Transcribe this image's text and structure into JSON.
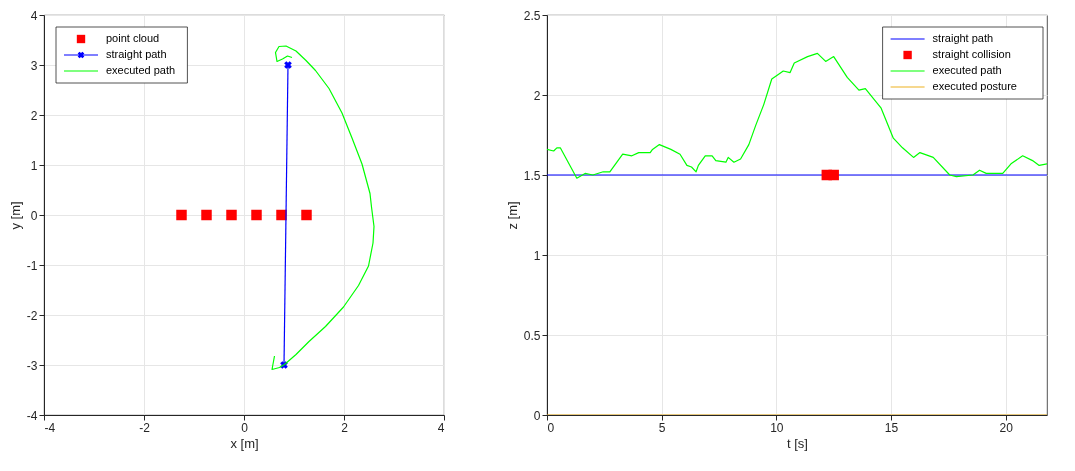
{
  "chart_data": [
    {
      "type": "line",
      "xlabel": "x [m]",
      "ylabel": "y [m]",
      "xlim": [
        -4,
        4
      ],
      "ylim": [
        -4,
        4
      ],
      "xticks": [
        -4,
        -2,
        0,
        2,
        4
      ],
      "yticks": [
        -4,
        -3,
        -2,
        -1,
        0,
        1,
        2,
        3,
        4
      ],
      "grid": true,
      "legend": "top left",
      "series": [
        {
          "name": "point cloud",
          "type": "scatter",
          "marker": "square",
          "color": "#ff0000",
          "x": [
            -1.25,
            -0.75,
            -0.25,
            0.25,
            0.75,
            1.25
          ],
          "values": [
            0,
            0,
            0,
            0,
            0,
            0
          ]
        },
        {
          "name": "straight path",
          "marker": "cross",
          "color": "#0000ff",
          "x": [
            0.88,
            0.8
          ],
          "values": [
            3,
            -3
          ]
        },
        {
          "name": "executed path",
          "marker": "none",
          "color": "#00ff00",
          "x": [
            0.61,
            0.56,
            0.71,
            0.81,
            1.04,
            1.3,
            1.63,
            1.99,
            2.29,
            2.49,
            2.58,
            2.6,
            2.55,
            2.52,
            2.36,
            2.16,
            1.96,
            1.7,
            1.43,
            1.24,
            1.04,
            0.84,
            0.7,
            0.63,
            0.66,
            0.77,
            0.87,
            0.96
          ],
          "values": [
            -2.82,
            -3.09,
            -3.05,
            -2.99,
            -2.79,
            -2.53,
            -2.23,
            -1.84,
            -1.41,
            -1.02,
            -0.56,
            -0.23,
            0.16,
            0.43,
            1.02,
            1.54,
            2.04,
            2.53,
            2.89,
            3.09,
            3.28,
            3.38,
            3.37,
            3.25,
            3.07,
            3.12,
            3.18,
            3.15
          ]
        }
      ]
    },
    {
      "type": "line",
      "xlabel": "t [s]",
      "ylabel": "z [m]",
      "xlim": [
        0,
        21.8
      ],
      "ylim": [
        0,
        2.5
      ],
      "xticks": [
        0,
        5,
        10,
        15,
        20
      ],
      "yticks": [
        0,
        0.5,
        1,
        1.5,
        2,
        2.5
      ],
      "grid": true,
      "legend": "top right",
      "series": [
        {
          "name": "straight path",
          "marker": "none",
          "color": "#0000ff",
          "x": [
            0,
            21.8
          ],
          "values": [
            1.5,
            1.5
          ]
        },
        {
          "name": "straight collision",
          "type": "scatter",
          "marker": "square",
          "color": "#ff0000",
          "x": [
            12.2,
            12.5
          ],
          "values": [
            1.5,
            1.5
          ]
        },
        {
          "name": "executed path",
          "marker": "none",
          "color": "#00ff00",
          "x": [
            0,
            0.29,
            0.43,
            0.58,
            1.3,
            1.66,
            2.0,
            2.45,
            2.74,
            3.3,
            3.7,
            4.0,
            4.5,
            4.6,
            4.9,
            5.4,
            5.8,
            6.1,
            6.3,
            6.5,
            6.6,
            6.9,
            7.2,
            7.36,
            7.8,
            7.9,
            8.15,
            8.44,
            8.8,
            9.1,
            9.45,
            9.8,
            10.1,
            10.3,
            10.6,
            10.78,
            11.36,
            11.79,
            12.15,
            12.5,
            13.09,
            13.6,
            13.88,
            14.56,
            15.1,
            15.5,
            15.98,
            16.26,
            16.84,
            17.56,
            17.85,
            18.57,
            18.86,
            19.15,
            19.87,
            20.23,
            20.74,
            21.17,
            21.46,
            21.8
          ],
          "values": [
            1.66,
            1.65,
            1.67,
            1.67,
            1.48,
            1.51,
            1.5,
            1.52,
            1.52,
            1.63,
            1.62,
            1.64,
            1.64,
            1.66,
            1.69,
            1.66,
            1.63,
            1.56,
            1.55,
            1.52,
            1.56,
            1.62,
            1.62,
            1.59,
            1.58,
            1.61,
            1.58,
            1.6,
            1.69,
            1.81,
            1.94,
            2.1,
            2.13,
            2.15,
            2.14,
            2.2,
            2.24,
            2.26,
            2.21,
            2.24,
            2.11,
            2.03,
            2.04,
            1.92,
            1.73,
            1.67,
            1.61,
            1.64,
            1.61,
            1.5,
            1.49,
            1.5,
            1.53,
            1.51,
            1.51,
            1.57,
            1.62,
            1.59,
            1.56,
            1.57
          ]
        },
        {
          "name": "executed posture",
          "marker": "none",
          "color": "#edb120",
          "x": [
            0,
            21.8
          ],
          "values": [
            0,
            0
          ]
        }
      ]
    }
  ]
}
